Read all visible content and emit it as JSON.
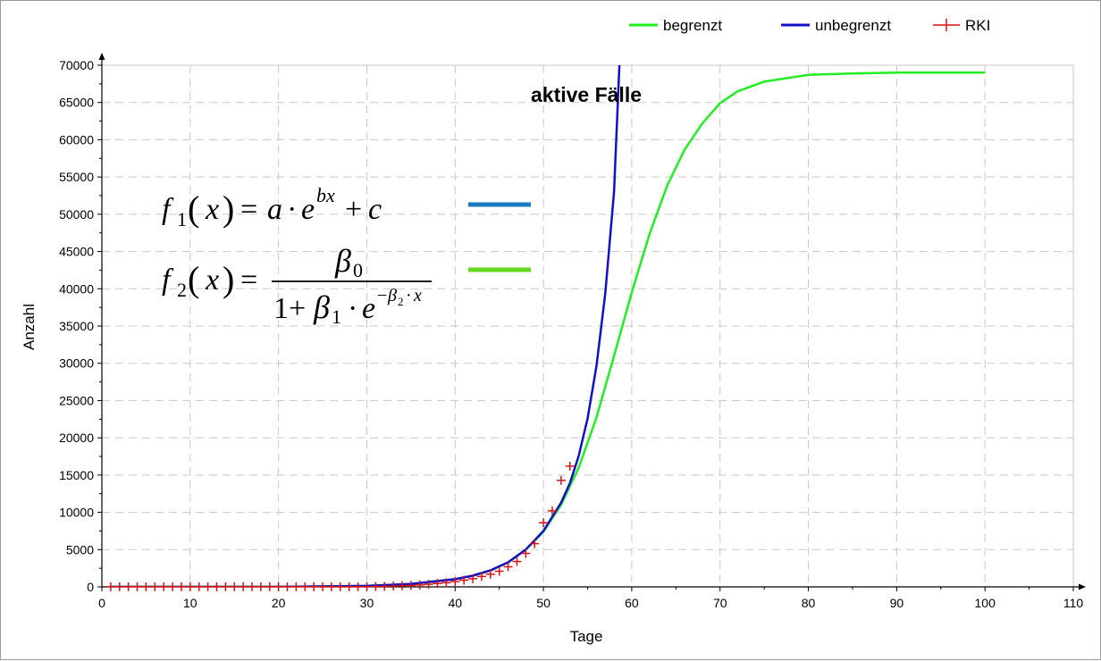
{
  "chart_data": {
    "type": "line",
    "title": "aktive Fälle",
    "xlabel": "Tage",
    "ylabel": "Anzahl",
    "xlim": [
      0,
      110
    ],
    "ylim": [
      0,
      70000
    ],
    "xticks": [
      0,
      10,
      20,
      30,
      40,
      50,
      60,
      70,
      80,
      90,
      100,
      110
    ],
    "yticks": [
      0,
      5000,
      10000,
      15000,
      20000,
      25000,
      30000,
      35000,
      40000,
      45000,
      50000,
      55000,
      60000,
      65000,
      70000
    ],
    "grid": true,
    "legend_position": "top-right",
    "series": [
      {
        "name": "begrenzt",
        "color": "#22ee22",
        "kind": "logistic",
        "x": [
          1,
          10,
          20,
          30,
          35,
          40,
          42,
          44,
          46,
          48,
          50,
          52,
          54,
          56,
          58,
          60,
          62,
          64,
          66,
          68,
          70,
          72,
          75,
          80,
          85,
          90,
          95,
          100
        ],
        "y": [
          0,
          0,
          5,
          130,
          380,
          1030,
          1500,
          2200,
          3300,
          5000,
          7400,
          11000,
          16000,
          22700,
          31000,
          39500,
          47300,
          53800,
          58700,
          62200,
          64900,
          66500,
          67800,
          68700,
          68900,
          69000,
          69000,
          69000
        ]
      },
      {
        "name": "unbegrenzt",
        "color": "#1010cc",
        "kind": "exponential",
        "x": [
          1,
          10,
          20,
          30,
          35,
          40,
          42,
          44,
          46,
          48,
          50,
          52,
          53,
          54,
          55,
          56,
          57,
          58,
          58.6
        ],
        "y": [
          0,
          0,
          5,
          130,
          380,
          1030,
          1500,
          2200,
          3300,
          5000,
          7500,
          11300,
          13900,
          17600,
          22600,
          29600,
          39400,
          53000,
          70000
        ]
      },
      {
        "name": "RKI",
        "color": "#dd1111",
        "kind": "marker",
        "x": [
          1,
          2,
          3,
          4,
          5,
          6,
          7,
          8,
          9,
          10,
          11,
          12,
          13,
          14,
          15,
          16,
          17,
          18,
          19,
          20,
          21,
          22,
          23,
          24,
          25,
          26,
          27,
          28,
          29,
          30,
          31,
          32,
          33,
          34,
          35,
          36,
          37,
          38,
          39,
          40,
          41,
          42,
          43,
          44,
          45,
          46,
          47,
          48,
          49,
          50,
          51,
          52,
          53
        ],
        "y": [
          16,
          16,
          16,
          16,
          16,
          16,
          16,
          16,
          16,
          16,
          16,
          16,
          16,
          16,
          16,
          16,
          16,
          16,
          16,
          16,
          16,
          16,
          16,
          16,
          16,
          16,
          16,
          16,
          16,
          20,
          40,
          60,
          100,
          150,
          200,
          250,
          350,
          450,
          550,
          700,
          900,
          1100,
          1400,
          1700,
          2100,
          2700,
          3400,
          4500,
          5800,
          8600,
          10200,
          14300,
          16200
        ]
      }
    ]
  },
  "formulas": {
    "f1": {
      "name": "f",
      "sub": "1",
      "var": "x",
      "rhs_a": "a",
      "rhs_e": "e",
      "rhs_exp": "bx",
      "rhs_c": "c",
      "color": "#1a7abf"
    },
    "f2": {
      "name": "f",
      "sub": "2",
      "var": "x",
      "num": "β",
      "num_sub": "0",
      "den_one": "1",
      "den_beta": "β",
      "den_beta_sub": "1",
      "den_e": "e",
      "den_exp_beta": "β",
      "den_exp_sub": "2",
      "den_exp_x": "x",
      "color": "#66d61e"
    }
  }
}
